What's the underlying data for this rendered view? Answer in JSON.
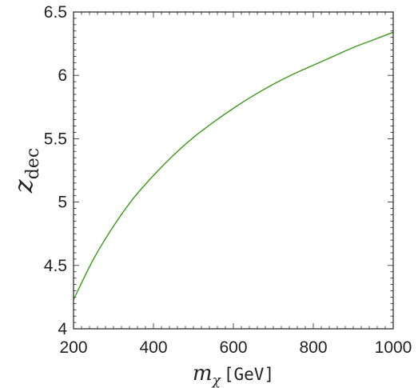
{
  "chart_data": {
    "type": "line",
    "xlabel": {
      "symbol": "m",
      "subscript": "χ",
      "unit": "[GeV]"
    },
    "ylabel": {
      "symbol": "z",
      "subscript": "dec"
    },
    "xlim": [
      200,
      1000
    ],
    "ylim": [
      4,
      6.5
    ],
    "xticks": [
      200,
      400,
      600,
      800,
      1000
    ],
    "yticks": [
      4,
      4.5,
      5,
      5.5,
      6,
      6.5
    ],
    "xtick_labels": [
      "200",
      "400",
      "600",
      "800",
      "1000"
    ],
    "ytick_labels": [
      "4",
      "4.5",
      "5",
      "5.5",
      "6",
      "6.5"
    ],
    "grid": false,
    "series": [
      {
        "color": "#3a9a1a",
        "x": [
          200,
          250,
          300,
          350,
          400,
          450,
          500,
          550,
          600,
          650,
          700,
          750,
          800,
          850,
          900,
          950,
          1000
        ],
        "y": [
          4.23,
          4.55,
          4.81,
          5.03,
          5.21,
          5.37,
          5.51,
          5.63,
          5.74,
          5.84,
          5.93,
          6.01,
          6.08,
          6.15,
          6.22,
          6.28,
          6.34
        ]
      }
    ]
  }
}
